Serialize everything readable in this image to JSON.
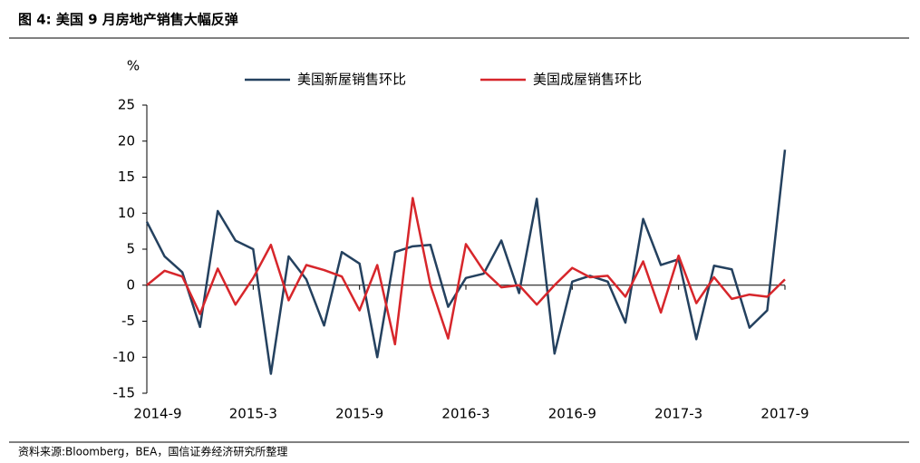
{
  "chart_data": {
    "type": "line",
    "title": "图 4: 美国 9 月房地产销售大幅反弹",
    "y_label": "%",
    "source": "资料来源:Bloomberg，BEA，国信证券经济研究所整理",
    "categories": [
      "2014-9",
      null,
      null,
      null,
      null,
      null,
      "2015-3",
      null,
      null,
      null,
      null,
      null,
      "2015-9",
      null,
      null,
      null,
      null,
      null,
      "2016-3",
      null,
      null,
      null,
      null,
      null,
      "2016-9",
      null,
      null,
      null,
      null,
      null,
      "2017-3",
      null,
      null,
      null,
      null,
      null,
      "2017-9"
    ],
    "series": [
      {
        "name": "美国新屋销售环比",
        "color": "#24415f",
        "values": [
          8.8,
          4.0,
          1.8,
          -5.8,
          10.3,
          6.2,
          5.0,
          -12.3,
          4.0,
          0.8,
          -5.6,
          4.6,
          3.0,
          -10,
          4.6,
          5.4,
          5.6,
          -3.0,
          1.0,
          1.6,
          6.2,
          -1.1,
          12.0,
          -9.5,
          0.5,
          1.3,
          0.5,
          -5.2,
          9.2,
          2.8,
          3.6,
          -7.5,
          2.7,
          2.2,
          -5.9,
          -3.5,
          18.8
        ]
      },
      {
        "name": "美国成屋销售环比",
        "color": "#d7262b",
        "values": [
          0,
          2.0,
          1.2,
          -4,
          2.3,
          -2.7,
          1.0,
          5.6,
          -2.1,
          2.8,
          2.1,
          1.2,
          -3.5,
          2.8,
          -8.2,
          12.1,
          0,
          -7.4,
          5.7,
          2.0,
          -0.3,
          0,
          -2.7,
          0,
          2.4,
          1.1,
          1.3,
          -1.6,
          3.3,
          -3.8,
          4.1,
          -2.5,
          1.1,
          -1.9,
          -1.3,
          -1.6,
          0.8
        ]
      }
    ],
    "ylim": [
      -15,
      25
    ],
    "yticks": [
      -15,
      -10,
      -5,
      0,
      5,
      10,
      15,
      20,
      25
    ],
    "legend": "top"
  }
}
